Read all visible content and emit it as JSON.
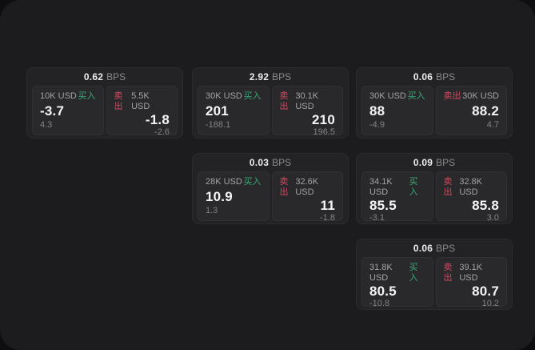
{
  "labels": {
    "bps_unit": "BPS",
    "buy": "买入",
    "sell": "卖出"
  },
  "colors": {
    "buy": "#38a873",
    "sell": "#d14a5f",
    "screen_background": "#1c1c1e",
    "card_background": "#232326",
    "panel_background": "#29292c"
  },
  "cards": [
    {
      "bps": "0.62",
      "buy": {
        "size": "10K USD",
        "value": "-3.7",
        "delta": "4.3"
      },
      "sell": {
        "size": "5.5K USD",
        "value": "-1.8",
        "delta": "-2.6"
      }
    },
    {
      "bps": "2.92",
      "buy": {
        "size": "30K USD",
        "value": "201",
        "delta": "-188.1"
      },
      "sell": {
        "size": "30.1K USD",
        "value": "210",
        "delta": "196.5"
      }
    },
    {
      "bps": "0.06",
      "buy": {
        "size": "30K USD",
        "value": "88",
        "delta": "-4.9"
      },
      "sell": {
        "size": "30K USD",
        "value": "88.2",
        "delta": "4.7"
      }
    },
    {
      "bps": "0.03",
      "buy": {
        "size": "28K USD",
        "value": "10.9",
        "delta": "1.3"
      },
      "sell": {
        "size": "32.6K USD",
        "value": "11",
        "delta": "-1.8"
      }
    },
    {
      "bps": "0.09",
      "buy": {
        "size": "34.1K USD",
        "value": "85.5",
        "delta": "-3.1"
      },
      "sell": {
        "size": "32.8K USD",
        "value": "85.8",
        "delta": "3.0"
      }
    },
    {
      "bps": "0.06",
      "buy": {
        "size": "31.8K USD",
        "value": "80.5",
        "delta": "-10.8"
      },
      "sell": {
        "size": "39.1K USD",
        "value": "80.7",
        "delta": "10.2"
      }
    }
  ]
}
